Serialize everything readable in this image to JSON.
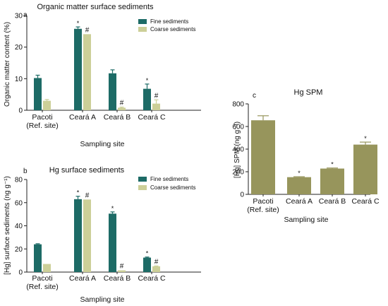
{
  "colors": {
    "fine": "#1d6b66",
    "coarse": "#cccf98",
    "spm": "#97955c",
    "axis": "#222222"
  },
  "chart_data": [
    {
      "id": "a",
      "panel_label": "a",
      "type": "bar",
      "title": "Organic matter surface sediments",
      "xlabel": "Sampling site",
      "ylabel": "Organic matter content (%)",
      "ylim": [
        0,
        30
      ],
      "yticks": [
        0,
        10,
        20,
        30
      ],
      "categories": [
        "Pacoti\n(Ref. site)",
        "Ceará A",
        "Ceará B",
        "Ceará C"
      ],
      "series": [
        {
          "name": "Fine sediments",
          "color_key": "fine",
          "values": [
            10.2,
            25.8,
            11.7,
            6.8
          ],
          "errors": [
            0.9,
            0.6,
            1.1,
            1.5
          ],
          "marks": [
            "",
            "*",
            "",
            "*"
          ]
        },
        {
          "name": "Coarse sediments",
          "color_key": "coarse",
          "values": [
            3.0,
            24.1,
            0.8,
            2.1
          ],
          "errors": [
            0.4,
            0.0,
            0.2,
            1.2
          ],
          "marks": [
            "",
            "#",
            "#",
            "#"
          ]
        }
      ],
      "legend": "top-right"
    },
    {
      "id": "b",
      "panel_label": "b",
      "type": "bar",
      "title": "Hg surface sediments",
      "xlabel": "Sampling site",
      "ylabel": "[Hg] surface sediments (ng g⁻¹)",
      "ylim": [
        0,
        80
      ],
      "yticks": [
        0,
        20,
        40,
        60,
        80
      ],
      "categories": [
        "Pacoti\n(Ref. site)",
        "Ceará A",
        "Ceará B",
        "Ceará C"
      ],
      "series": [
        {
          "name": "Fine sediments",
          "color_key": "fine",
          "values": [
            24,
            63,
            50.5,
            12.5
          ],
          "errors": [
            0.5,
            2.5,
            1.5,
            0.5
          ],
          "marks": [
            "",
            "*",
            "*",
            "*"
          ]
        },
        {
          "name": "Coarse sediments",
          "color_key": "coarse",
          "values": [
            7,
            62.7,
            1.5,
            5
          ],
          "errors": [
            0.0,
            0.0,
            0.0,
            0.3
          ],
          "marks": [
            "",
            "#",
            "#",
            "#"
          ]
        }
      ],
      "legend": "top-right"
    },
    {
      "id": "c",
      "panel_label": "c",
      "type": "bar",
      "title": "Hg SPM",
      "xlabel": "Sampling site",
      "ylabel": "[Hg] SPM (ng g⁻¹)",
      "ylim": [
        0,
        800
      ],
      "yticks": [
        0,
        200,
        400,
        600,
        800
      ],
      "categories": [
        "Pacoti\n(Ref. site)",
        "Ceará A",
        "Ceará B",
        "Ceará C"
      ],
      "series": [
        {
          "name": "",
          "color_key": "spm",
          "values": [
            655,
            152,
            228,
            440
          ],
          "errors": [
            40,
            4,
            5,
            22
          ],
          "marks": [
            "",
            "*",
            "*",
            "*"
          ]
        }
      ]
    }
  ]
}
